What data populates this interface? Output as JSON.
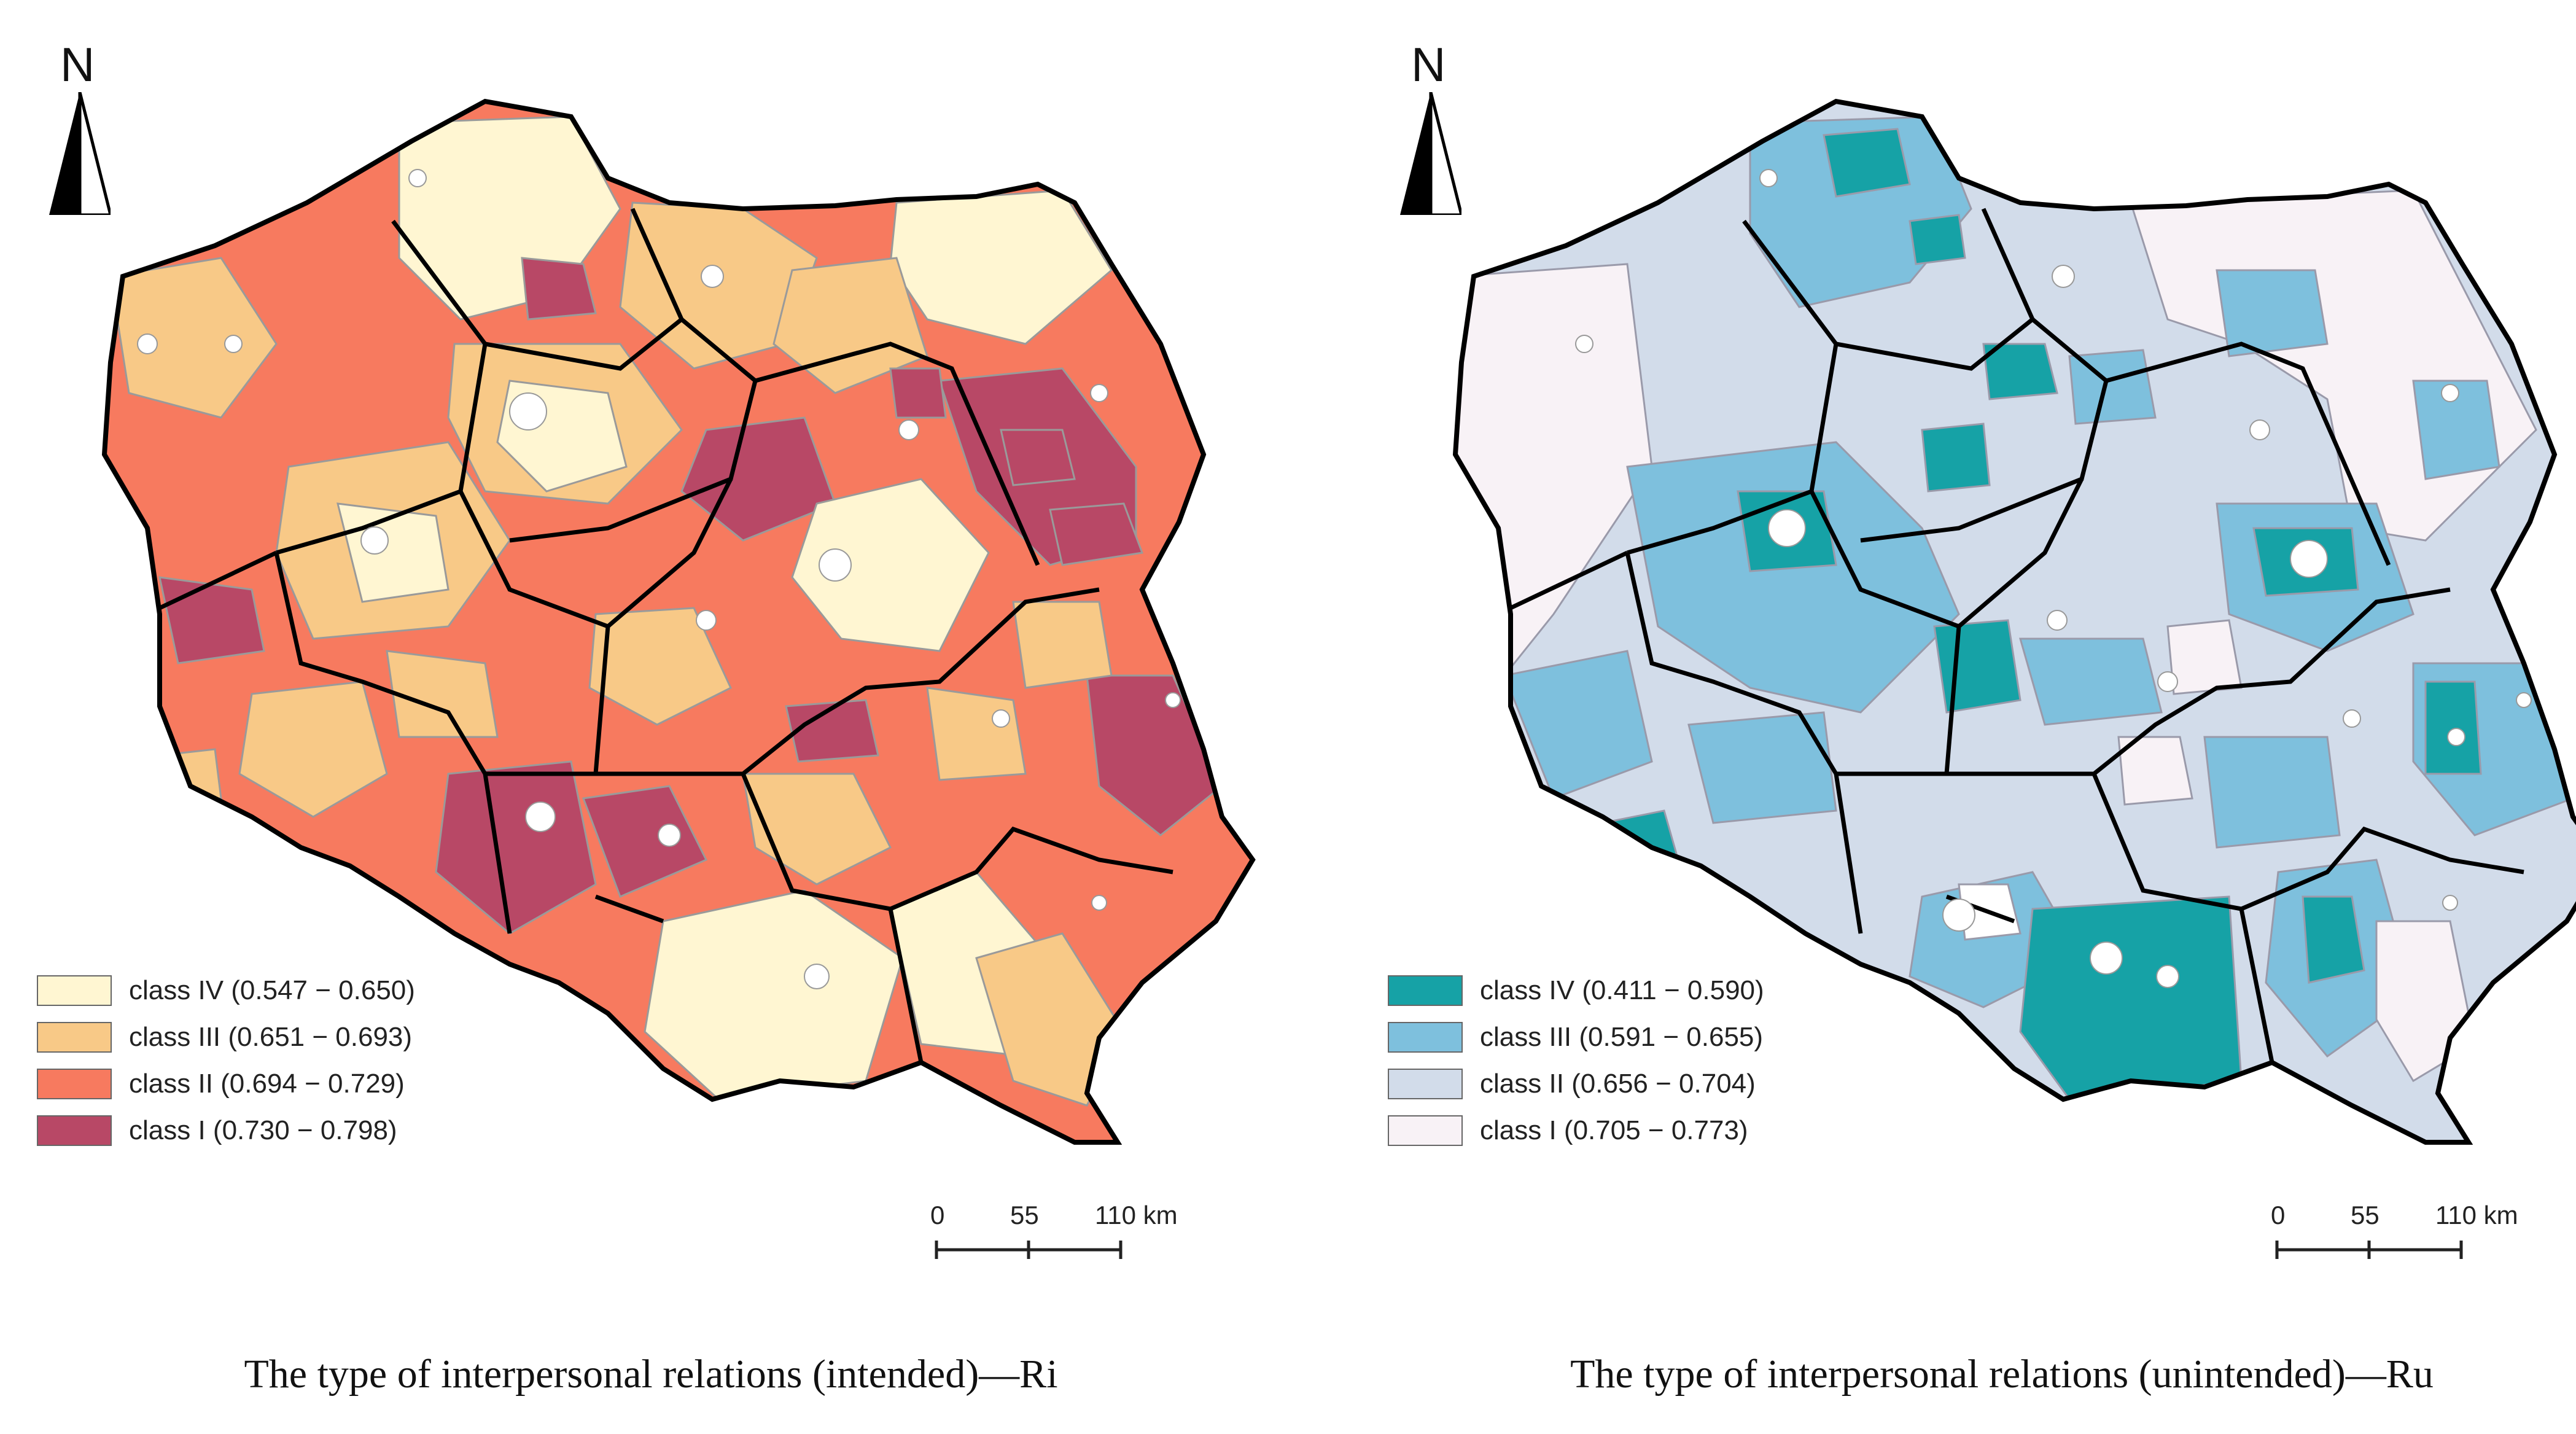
{
  "maps": [
    {
      "id": "intended",
      "caption": "The type of interpersonal relations (intended)—Ri",
      "north_label": "N",
      "legend": [
        {
          "label": "class IV (0.547 − 0.650)",
          "color": "#fff6d2"
        },
        {
          "label": "class III (0.651 − 0.693)",
          "color": "#f8c987"
        },
        {
          "label": "class II (0.694 − 0.729)",
          "color": "#f77a5f"
        },
        {
          "label": "class I (0.730 − 0.798)",
          "color": "#b84866"
        }
      ],
      "scale": {
        "labels": [
          "0",
          "55",
          "110 km"
        ]
      }
    },
    {
      "id": "unintended",
      "caption": "The type of interpersonal relations (unintended)—Ru",
      "north_label": "N",
      "legend": [
        {
          "label": "class IV (0.411 − 0.590)",
          "color": "#16a2a6"
        },
        {
          "label": "class III (0.591 − 0.655)",
          "color": "#7ec0dd"
        },
        {
          "label": "class II (0.656 − 0.704)",
          "color": "#d2dcea"
        },
        {
          "label": "class I (0.705 − 0.773)",
          "color": "#f8f2f6"
        }
      ],
      "scale": {
        "labels": [
          "0",
          "55",
          "110 km"
        ]
      }
    }
  ]
}
